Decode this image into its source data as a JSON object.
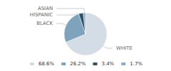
{
  "chart_data": {
    "type": "pie",
    "categories": [
      "WHITE",
      "BLACK",
      "HISPANIC",
      "ASIAN"
    ],
    "values": [
      68.6,
      26.2,
      3.4,
      1.7
    ],
    "value_labels": [
      "68.6%",
      "26.2%",
      "3.4%",
      "1.7%"
    ],
    "colors": [
      "#d4dce6",
      "#7fa3bc",
      "#2e506b",
      "#8fafc0"
    ],
    "legend": "bottom"
  }
}
